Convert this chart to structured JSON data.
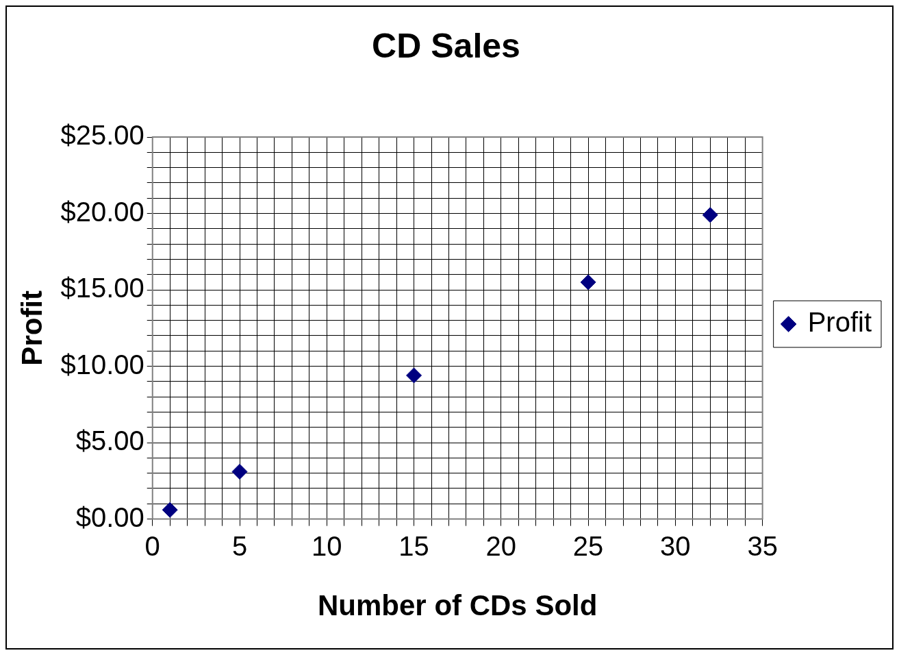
{
  "chart_data": {
    "type": "scatter",
    "title": "CD Sales",
    "xlabel": "Number of CDs Sold",
    "ylabel": "Profit",
    "x": [
      1,
      5,
      15,
      25,
      32
    ],
    "series": [
      {
        "name": "Profit",
        "color": "#000080",
        "values": [
          0.6,
          3.1,
          9.4,
          15.5,
          19.9
        ]
      }
    ],
    "xlim": [
      0,
      35
    ],
    "xticks": [
      0,
      {
        "value": 1,
        "label": null
      },
      {
        "value": 2,
        "label": null
      },
      {
        "value": 3,
        "label": null
      },
      {
        "value": 4,
        "label": null
      },
      5,
      {
        "value": 6,
        "label": null
      },
      {
        "value": 7,
        "label": null
      },
      {
        "value": 8,
        "label": null
      },
      {
        "value": 9,
        "label": null
      },
      10,
      {
        "value": 11,
        "label": null
      },
      {
        "value": 12,
        "label": null
      },
      {
        "value": 13,
        "label": null
      },
      {
        "value": 14,
        "label": null
      },
      15,
      {
        "value": 16,
        "label": null
      },
      {
        "value": 17,
        "label": null
      },
      {
        "value": 18,
        "label": null
      },
      {
        "value": 19,
        "label": null
      },
      20,
      {
        "value": 21,
        "label": null
      },
      {
        "value": 22,
        "label": null
      },
      {
        "value": 23,
        "label": null
      },
      {
        "value": 24,
        "label": null
      },
      25,
      {
        "value": 26,
        "label": null
      },
      {
        "value": 27,
        "label": null
      },
      {
        "value": 28,
        "label": null
      },
      {
        "value": 29,
        "label": null
      },
      30,
      {
        "value": 31,
        "label": null
      },
      {
        "value": 32,
        "label": null
      },
      {
        "value": 33,
        "label": null
      },
      {
        "value": 34,
        "label": null
      },
      35
    ],
    "ylim": [
      0,
      25
    ],
    "yticks": [
      {
        "value": 0,
        "label": "$0.00"
      },
      {
        "value": 1,
        "label": null
      },
      {
        "value": 2,
        "label": null
      },
      {
        "value": 3,
        "label": null
      },
      {
        "value": 4,
        "label": null
      },
      {
        "value": 5,
        "label": "$5.00"
      },
      {
        "value": 6,
        "label": null
      },
      {
        "value": 7,
        "label": null
      },
      {
        "value": 8,
        "label": null
      },
      {
        "value": 9,
        "label": null
      },
      {
        "value": 10,
        "label": "$10.00"
      },
      {
        "value": 11,
        "label": null
      },
      {
        "value": 12,
        "label": null
      },
      {
        "value": 13,
        "label": null
      },
      {
        "value": 14,
        "label": null
      },
      {
        "value": 15,
        "label": "$15.00"
      },
      {
        "value": 16,
        "label": null
      },
      {
        "value": 17,
        "label": null
      },
      {
        "value": 18,
        "label": null
      },
      {
        "value": 19,
        "label": null
      },
      {
        "value": 20,
        "label": "$20.00"
      },
      {
        "value": 21,
        "label": null
      },
      {
        "value": 22,
        "label": null
      },
      {
        "value": 23,
        "label": null
      },
      {
        "value": 24,
        "label": null
      },
      {
        "value": 25,
        "label": "$25.00"
      }
    ],
    "grid": true,
    "legend": "right",
    "marker": "diamond"
  }
}
